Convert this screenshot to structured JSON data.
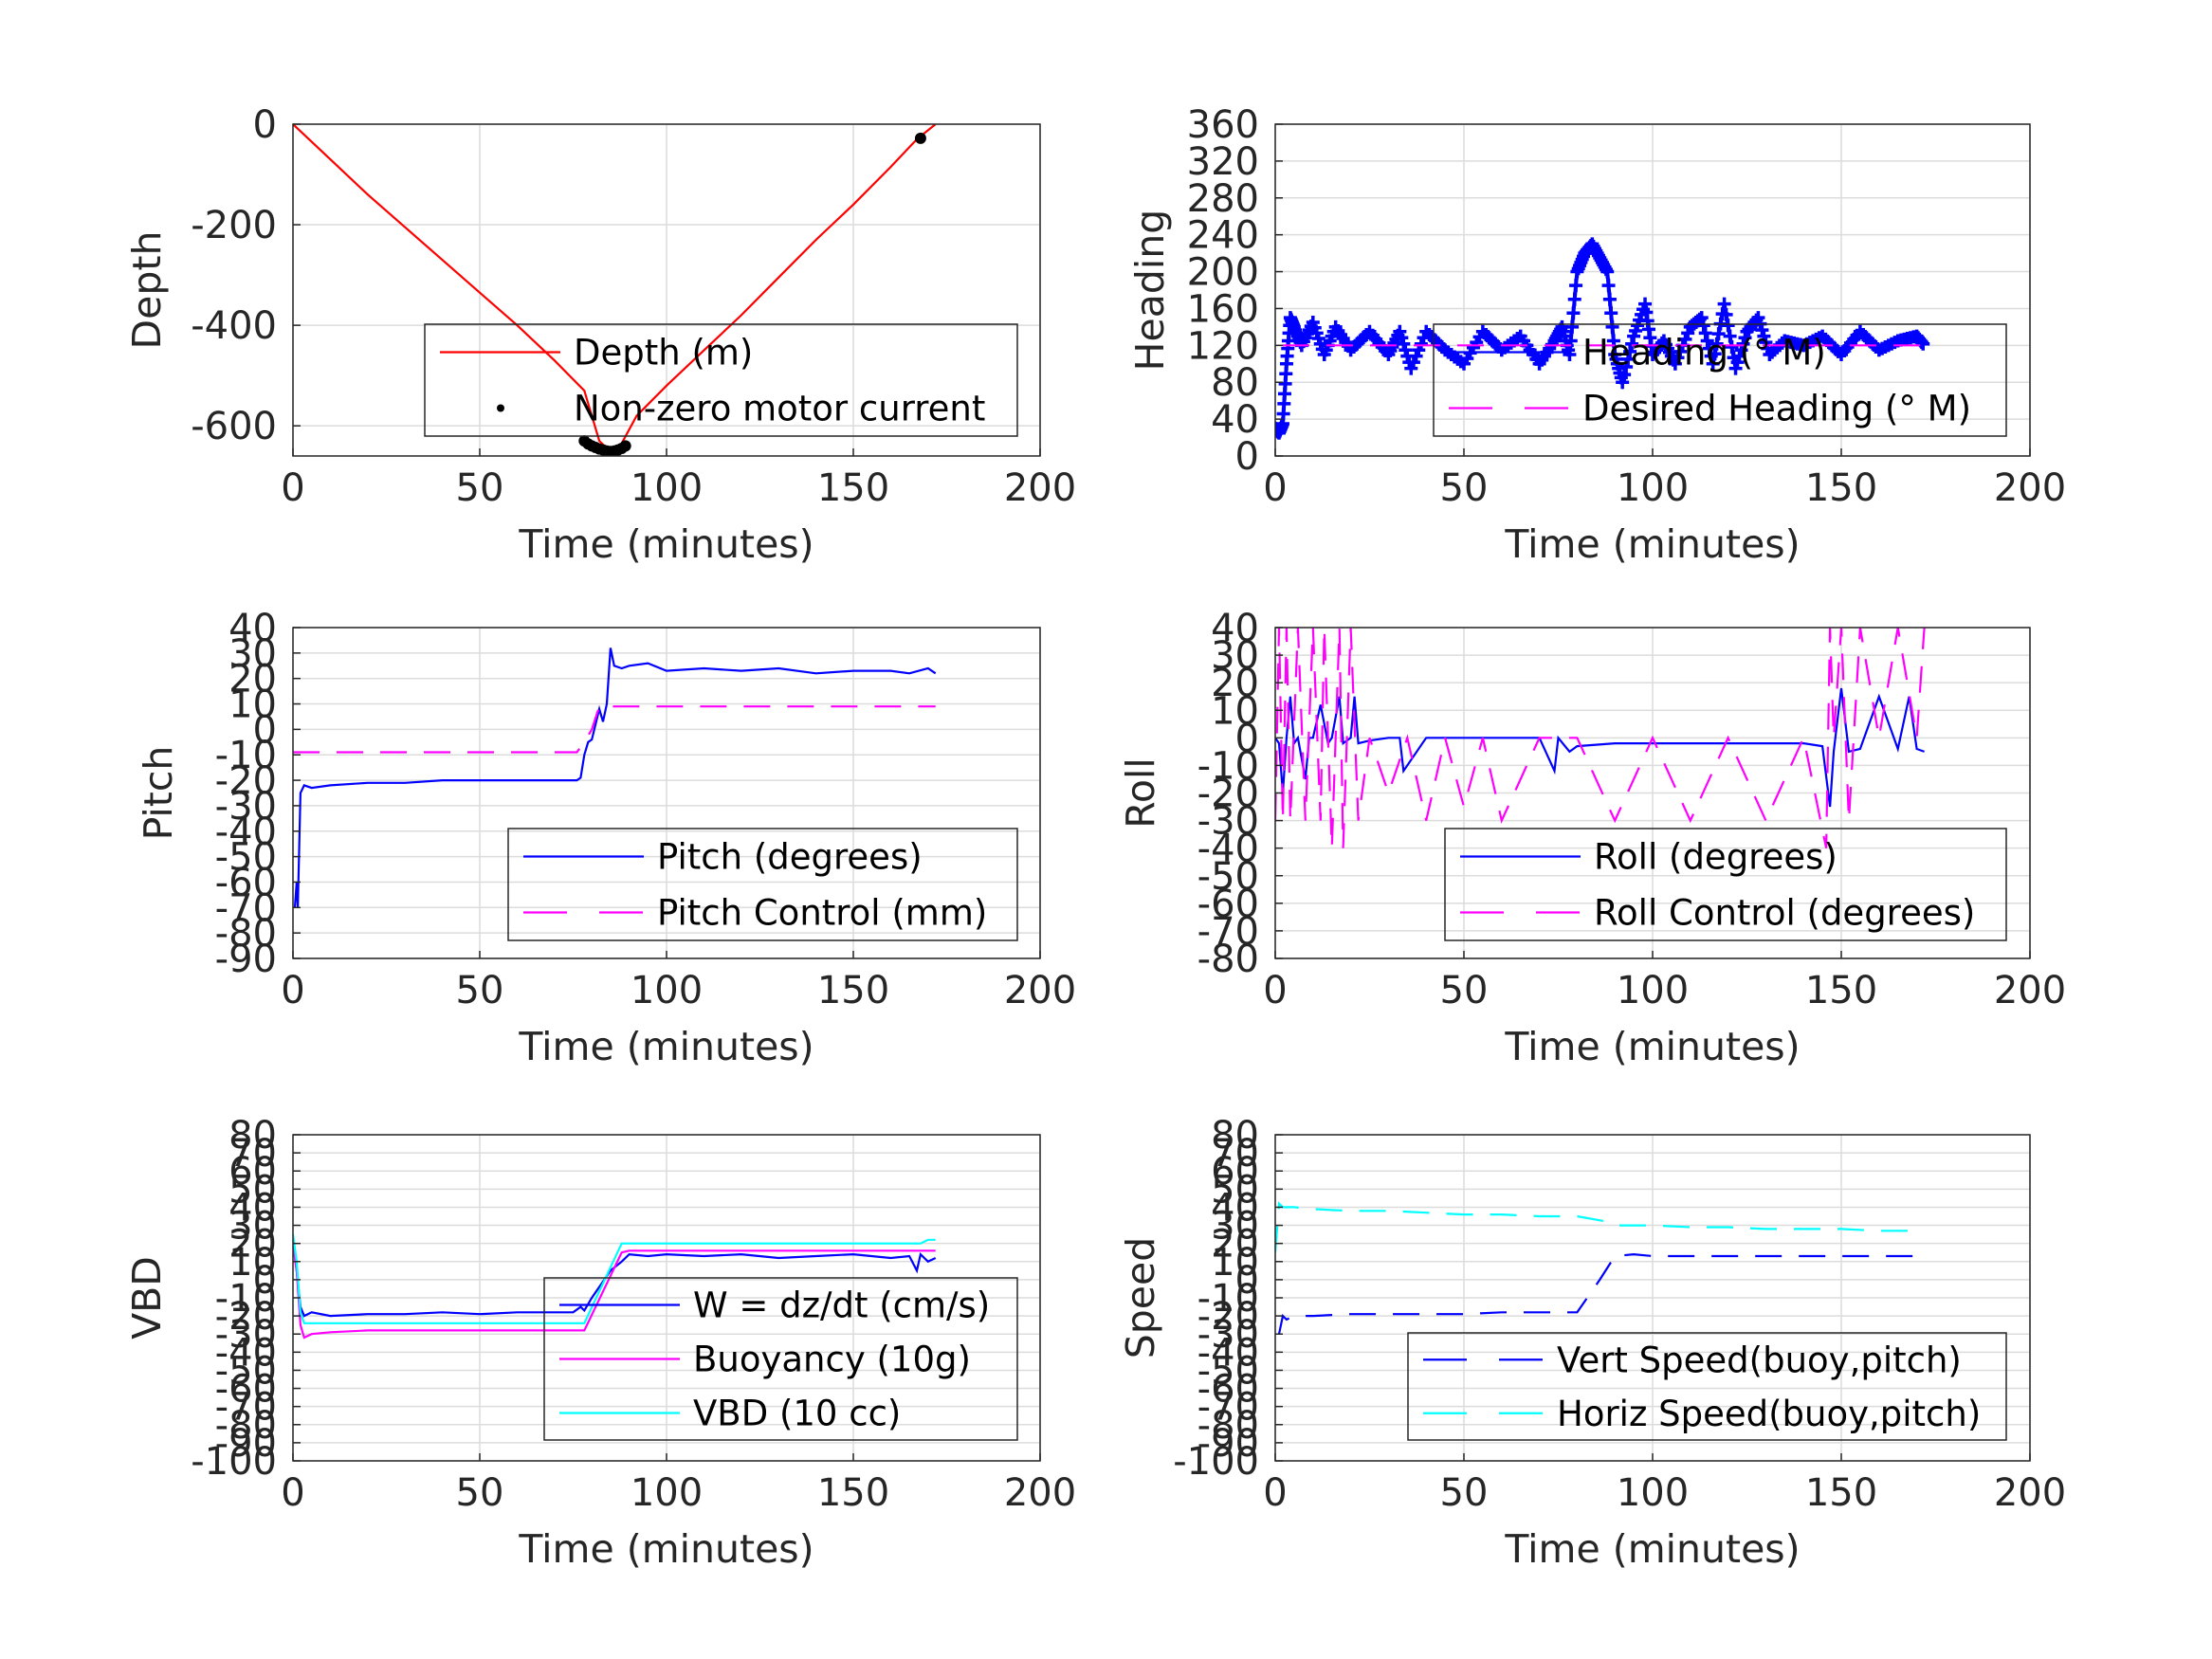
{
  "figure": {
    "background": "#ffffff",
    "grid_color": "#dcdcdc",
    "axis_color": "#262626"
  },
  "chart_data": [
    {
      "id": "depth",
      "type": "line",
      "xlabel": "Time (minutes)",
      "ylabel": "Depth",
      "xlim": [
        0,
        200
      ],
      "ylim": [
        -660,
        0
      ],
      "xticks": [
        0,
        50,
        100,
        150,
        200
      ],
      "yticks": [
        -600,
        -400,
        -200,
        0
      ],
      "grid": true,
      "legend": "bottom-right",
      "series": [
        {
          "name": "Depth (m)",
          "color": "#ff0000",
          "style": "solid",
          "x": [
            0,
            10,
            20,
            30,
            40,
            50,
            60,
            70,
            78,
            82,
            85,
            88,
            92,
            100,
            110,
            120,
            130,
            140,
            150,
            160,
            167,
            172
          ],
          "y": [
            0,
            -70,
            -140,
            -205,
            -270,
            -335,
            -400,
            -470,
            -530,
            -630,
            -652,
            -635,
            -580,
            -520,
            -450,
            -380,
            -305,
            -230,
            -160,
            -85,
            -30,
            0
          ]
        },
        {
          "name": "Non-zero motor current",
          "color": "#000000",
          "style": "dots",
          "x": [
            78,
            79,
            80,
            81,
            82,
            83,
            84,
            85,
            86,
            87,
            88,
            89,
            168
          ],
          "y": [
            -630,
            -636,
            -640,
            -643,
            -646,
            -648,
            -650,
            -651,
            -650,
            -648,
            -645,
            -640,
            -28
          ]
        }
      ]
    },
    {
      "id": "heading",
      "type": "line",
      "xlabel": "Time (minutes)",
      "ylabel": "Heading",
      "xlim": [
        0,
        200
      ],
      "ylim": [
        0,
        360
      ],
      "xticks": [
        0,
        50,
        100,
        150,
        200
      ],
      "yticks": [
        0,
        40,
        80,
        120,
        160,
        200,
        240,
        280,
        320,
        360
      ],
      "grid": true,
      "legend": "bottom-right",
      "series": [
        {
          "name": "Heading (° M)",
          "color": "#0000ff",
          "style": "plus",
          "x": [
            0,
            1,
            2,
            3,
            4,
            5,
            7,
            10,
            13,
            16,
            20,
            25,
            30,
            33,
            36,
            40,
            45,
            50,
            55,
            60,
            65,
            70,
            74,
            76,
            78,
            80,
            82,
            84,
            86,
            88,
            90,
            92,
            95,
            98,
            100,
            103,
            106,
            110,
            113,
            116,
            119,
            122,
            125,
            128,
            131,
            135,
            140,
            145,
            150,
            155,
            160,
            165,
            170,
            172
          ],
          "y": [
            30,
            25,
            35,
            100,
            150,
            140,
            120,
            145,
            110,
            140,
            115,
            135,
            110,
            135,
            95,
            135,
            115,
            100,
            135,
            115,
            130,
            100,
            125,
            140,
            110,
            200,
            220,
            230,
            215,
            200,
            110,
            80,
            130,
            165,
            110,
            125,
            100,
            140,
            150,
            100,
            165,
            95,
            135,
            150,
            110,
            125,
            120,
            130,
            110,
            135,
            115,
            125,
            130,
            120
          ]
        },
        {
          "name": "Desired Heading (° M)",
          "color": "#ff00ff",
          "style": "dashed",
          "x": [
            2,
            172
          ],
          "y": [
            120,
            120
          ]
        }
      ]
    },
    {
      "id": "pitch",
      "type": "line",
      "xlabel": "Time (minutes)",
      "ylabel": "Pitch",
      "xlim": [
        0,
        200
      ],
      "ylim": [
        -90,
        40
      ],
      "xticks": [
        0,
        50,
        100,
        150,
        200
      ],
      "yticks": [
        -90,
        -80,
        -70,
        -60,
        -50,
        -40,
        -30,
        -20,
        -10,
        0,
        10,
        20,
        30,
        40
      ],
      "grid": true,
      "legend": "bottom-right",
      "series": [
        {
          "name": "Pitch (degrees)",
          "color": "#0000ff",
          "style": "solid",
          "x": [
            0.5,
            1,
            1.3,
            2,
            3,
            5,
            10,
            20,
            30,
            40,
            50,
            60,
            70,
            76,
            77,
            78,
            79,
            80,
            82,
            83,
            84,
            85,
            86,
            88,
            90,
            95,
            100,
            110,
            120,
            130,
            140,
            150,
            160,
            165,
            170,
            172
          ],
          "y": [
            -70,
            -60,
            -70,
            -25,
            -22,
            -23,
            -22,
            -21,
            -21,
            -20,
            -20,
            -20,
            -20,
            -20,
            -19,
            -10,
            -5,
            -4,
            8,
            3,
            10,
            32,
            25,
            24,
            25,
            26,
            23,
            24,
            23,
            24,
            22,
            23,
            23,
            22,
            24,
            22
          ]
        },
        {
          "name": "Pitch Control (mm)",
          "color": "#ff00ff",
          "style": "dashed",
          "x": [
            0,
            10,
            20,
            30,
            40,
            50,
            60,
            70,
            76,
            78,
            80,
            82,
            84,
            90,
            100,
            120,
            140,
            160,
            172
          ],
          "y": [
            -9,
            -9,
            -9,
            -9,
            -9,
            -9,
            -9,
            -9,
            -9,
            -5,
            0,
            9,
            9,
            9,
            9,
            9,
            9,
            9,
            9
          ]
        }
      ]
    },
    {
      "id": "roll",
      "type": "line",
      "xlabel": "Time (minutes)",
      "ylabel": "Roll",
      "xlim": [
        0,
        200
      ],
      "ylim": [
        -80,
        40
      ],
      "xticks": [
        0,
        50,
        100,
        150,
        200
      ],
      "yticks": [
        -80,
        -70,
        -60,
        -50,
        -40,
        -30,
        -20,
        -10,
        0,
        10,
        20,
        30,
        40
      ],
      "grid": true,
      "legend": "bottom-right",
      "series": [
        {
          "name": "Roll (degrees)",
          "color": "#0000ff",
          "style": "solid",
          "x": [
            0,
            1,
            2,
            3,
            4,
            5,
            6,
            8,
            9,
            10,
            12,
            14,
            15,
            17,
            18,
            20,
            21,
            22,
            25,
            30,
            33,
            34,
            40,
            50,
            60,
            70,
            74,
            75,
            78,
            80,
            90,
            100,
            110,
            120,
            130,
            140,
            145,
            147,
            148,
            150,
            152,
            155,
            160,
            165,
            168,
            170,
            172
          ],
          "y": [
            0,
            -2,
            -20,
            0,
            15,
            -2,
            0,
            -15,
            0,
            0,
            12,
            -2,
            0,
            15,
            -2,
            0,
            15,
            -2,
            -1,
            0,
            0,
            -12,
            0,
            0,
            0,
            0,
            -12,
            0,
            -5,
            -3,
            -2,
            -2,
            -2,
            -2,
            -2,
            -2,
            -3,
            -25,
            -5,
            18,
            -5,
            -4,
            15,
            -4,
            15,
            -4,
            -5
          ]
        },
        {
          "name": "Roll Control (degrees)",
          "color": "#ff00ff",
          "style": "dashed",
          "x": [
            0,
            1,
            2,
            3,
            4,
            6,
            8,
            10,
            12,
            13,
            15,
            17,
            18,
            20,
            22,
            25,
            30,
            35,
            40,
            45,
            50,
            55,
            60,
            70,
            80,
            90,
            100,
            110,
            120,
            130,
            140,
            146,
            147,
            148,
            150,
            152,
            155,
            160,
            165,
            170,
            172
          ],
          "y": [
            -30,
            40,
            -30,
            40,
            -30,
            40,
            -30,
            40,
            -30,
            40,
            -40,
            40,
            -40,
            40,
            -30,
            0,
            -20,
            0,
            -30,
            0,
            -25,
            0,
            -30,
            0,
            0,
            -30,
            0,
            -30,
            0,
            -30,
            0,
            -40,
            40,
            0,
            40,
            -30,
            40,
            0,
            40,
            0,
            40
          ]
        }
      ]
    },
    {
      "id": "vbd",
      "type": "line",
      "xlabel": "Time (minutes)",
      "ylabel": "VBD",
      "xlim": [
        0,
        200
      ],
      "ylim": [
        -100,
        80
      ],
      "xticks": [
        0,
        50,
        100,
        150,
        200
      ],
      "yticks": [
        -100,
        -90,
        -80,
        -70,
        -60,
        -50,
        -40,
        -30,
        -20,
        -10,
        0,
        10,
        20,
        30,
        40,
        50,
        60,
        70,
        80
      ],
      "grid": true,
      "legend": "bottom-right",
      "series": [
        {
          "name": "W = dz/dt (cm/s)",
          "color": "#0000ff",
          "style": "solid",
          "x": [
            0,
            1,
            2,
            3,
            5,
            10,
            20,
            30,
            40,
            50,
            60,
            70,
            75,
            77,
            78,
            80,
            85,
            88,
            90,
            95,
            100,
            110,
            120,
            130,
            140,
            150,
            160,
            165,
            167,
            168,
            170,
            172
          ],
          "y": [
            20,
            5,
            -15,
            -20,
            -18,
            -20,
            -19,
            -19,
            -18,
            -19,
            -18,
            -18,
            -18,
            -15,
            -17,
            -10,
            5,
            10,
            14,
            13,
            14,
            13,
            14,
            12,
            13,
            14,
            12,
            13,
            5,
            14,
            10,
            12
          ]
        },
        {
          "name": "Buoyancy (10g)",
          "color": "#ff00ff",
          "style": "solid",
          "x": [
            0,
            1,
            2,
            3,
            5,
            10,
            20,
            30,
            40,
            50,
            60,
            70,
            78,
            88,
            90,
            100,
            120,
            140,
            160,
            170,
            172
          ],
          "y": [
            20,
            5,
            -25,
            -32,
            -30,
            -29,
            -28,
            -28,
            -28,
            -28,
            -28,
            -28,
            -28,
            15,
            16,
            16,
            16,
            16,
            16,
            16,
            16
          ]
        },
        {
          "name": "VBD (10 cc)",
          "color": "#00ffff",
          "style": "solid",
          "x": [
            0,
            1,
            2,
            3,
            5,
            10,
            20,
            30,
            40,
            50,
            60,
            70,
            78,
            88,
            90,
            100,
            120,
            140,
            160,
            168,
            170,
            172
          ],
          "y": [
            25,
            10,
            -18,
            -24,
            -24,
            -24,
            -24,
            -24,
            -24,
            -24,
            -24,
            -24,
            -24,
            20,
            20,
            20,
            20,
            20,
            20,
            20,
            22,
            22
          ]
        }
      ]
    },
    {
      "id": "speed",
      "type": "line",
      "xlabel": "Time (minutes)",
      "ylabel": "Speed",
      "xlim": [
        0,
        200
      ],
      "ylim": [
        -100,
        80
      ],
      "xticks": [
        0,
        50,
        100,
        150,
        200
      ],
      "yticks": [
        -100,
        -90,
        -80,
        -70,
        -60,
        -50,
        -40,
        -30,
        -20,
        -10,
        0,
        10,
        20,
        30,
        40,
        50,
        60,
        70,
        80
      ],
      "grid": true,
      "legend": "bottom-right",
      "series": [
        {
          "name": "Vert Speed(buoy,pitch)",
          "color": "#0000ff",
          "style": "dashed",
          "x": [
            1,
            2,
            3,
            5,
            10,
            20,
            30,
            40,
            50,
            60,
            70,
            78,
            80,
            86,
            90,
            95,
            100,
            120,
            140,
            160,
            170,
            172
          ],
          "y": [
            -30,
            -20,
            -22,
            -20,
            -20,
            -19,
            -19,
            -19,
            -19,
            -18,
            -18,
            -18,
            -18,
            0,
            13,
            14,
            13,
            13,
            13,
            13,
            13,
            12
          ]
        },
        {
          "name": "Horiz Speed(buoy,pitch)",
          "color": "#00ffff",
          "style": "dashed",
          "x": [
            0,
            1,
            2,
            5,
            10,
            20,
            30,
            40,
            50,
            60,
            70,
            80,
            88,
            90,
            100,
            110,
            120,
            130,
            140,
            150,
            160,
            170,
            172
          ],
          "y": [
            15,
            42,
            40,
            40,
            39,
            38,
            38,
            37,
            36,
            36,
            35,
            35,
            32,
            30,
            30,
            29,
            29,
            28,
            28,
            28,
            27,
            27,
            26
          ]
        }
      ]
    }
  ]
}
